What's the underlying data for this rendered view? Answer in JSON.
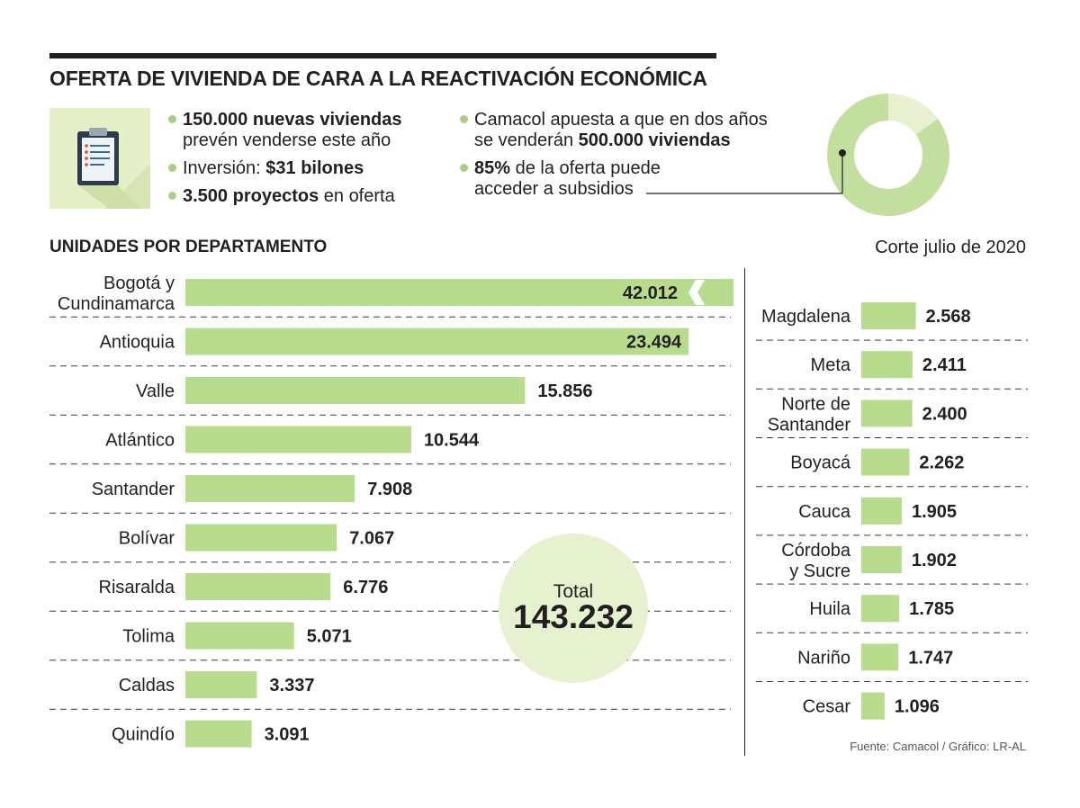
{
  "header": {
    "title": "OFERTA DE VIVIENDA DE CARA A LA REACTIVACIÓN ECONÓMICA"
  },
  "facts": {
    "left": [
      {
        "parts": [
          {
            "text": "150.000 nuevas viviendas",
            "bold": true
          },
          {
            "text": " prevén venderse este año",
            "bold": false,
            "break": true
          }
        ]
      },
      {
        "parts": [
          {
            "text": "Inversión: ",
            "bold": false
          },
          {
            "text": "$31 bilones",
            "bold": true
          }
        ]
      },
      {
        "parts": [
          {
            "text": "3.500 proyectos",
            "bold": true
          },
          {
            "text": " en oferta",
            "bold": false
          }
        ]
      }
    ],
    "right": [
      {
        "parts": [
          {
            "text": "Camacol apuesta a que en dos años",
            "bold": false
          },
          {
            "text": "se venderán ",
            "bold": false,
            "break": true
          },
          {
            "text": "500.000 viviendas",
            "bold": true
          }
        ]
      },
      {
        "parts": [
          {
            "text": "85%",
            "bold": true
          },
          {
            "text": " de la oferta puede",
            "bold": false
          },
          {
            "text": "acceder a subsidios",
            "bold": false,
            "break": true
          }
        ]
      }
    ]
  },
  "donut": {
    "highlight_percent": 85,
    "colors": {
      "main": "#c3df9f",
      "rest": "#e7f1d0"
    }
  },
  "section_title": "UNIDADES POR DEPARTAMENTO",
  "corte": "Corte julio de 2020",
  "source": "Fuente: Camacol / Gráfico: LR-AL",
  "total": {
    "label": "Total",
    "value": "143.232"
  },
  "colors": {
    "bar": "#b8dc8e",
    "total_circle": "#e5f1cf",
    "text": "#231f20"
  },
  "chart_data": {
    "type": "bar",
    "orientation": "horizontal",
    "title": "UNIDADES POR DEPARTAMENTO",
    "unit": "viviendas",
    "truncated_max": true,
    "panels": [
      {
        "name": "left",
        "categories": [
          "Bogotá y\nCundinamarca",
          "Antioquia",
          "Valle",
          "Atlántico",
          "Santander",
          "Bolívar",
          "Risaralda",
          "Tolima",
          "Caldas",
          "Quindío"
        ],
        "values": [
          42012,
          23494,
          15856,
          10544,
          7908,
          7067,
          6776,
          5071,
          3337,
          3091
        ],
        "labels": [
          "42.012",
          "23.494",
          "15.856",
          "10.544",
          "7.908",
          "7.067",
          "6.776",
          "5.071",
          "3.337",
          "3.091"
        ]
      },
      {
        "name": "right",
        "categories": [
          "Magdalena",
          "Meta",
          "Norte de\nSantander",
          "Boyacá",
          "Cauca",
          "Córdoba\ny Sucre",
          "Huila",
          "Nariño",
          "Cesar"
        ],
        "values": [
          2568,
          2411,
          2400,
          2262,
          1905,
          1902,
          1785,
          1747,
          1096
        ],
        "labels": [
          "2.568",
          "2.411",
          "2.400",
          "2.262",
          "1.905",
          "1.902",
          "1.785",
          "1.747",
          "1.096"
        ]
      }
    ]
  }
}
